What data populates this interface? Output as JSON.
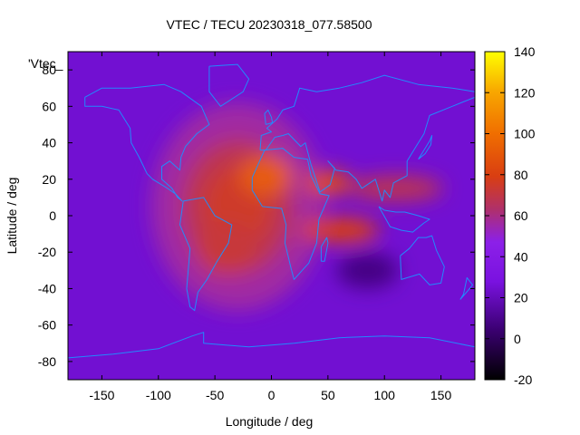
{
  "chart_data": {
    "type": "heatmap",
    "title": "VTEC / TECU 20230318_077.58500",
    "xlabel": "Longitude / deg",
    "ylabel": "Latitude / deg",
    "xlim": [
      -180,
      180
    ],
    "ylim": [
      -90,
      90
    ],
    "x_ticks": [
      -150,
      -100,
      -50,
      0,
      50,
      100,
      150
    ],
    "y_ticks": [
      -80,
      -60,
      -40,
      -20,
      0,
      20,
      40,
      60,
      80
    ],
    "legend_label": "'Vtec_",
    "legend_placement": "top-left",
    "colorbar": {
      "range": [
        -20,
        140
      ],
      "ticks": [
        -20,
        0,
        20,
        40,
        60,
        80,
        100,
        120,
        140
      ],
      "palette": "black-purple-red-orange-yellow"
    },
    "background_value": 25,
    "enhancements": [
      {
        "name": "equatorial anomaly core (South America / Atlantic)",
        "lon": -30,
        "lat": 5,
        "value": 75
      },
      {
        "name": "northern crest (Africa)",
        "lon": -5,
        "lat": 22,
        "value": 92
      },
      {
        "name": "southern crest (Atlantic)",
        "lon": -40,
        "lat": -18,
        "value": 72
      },
      {
        "name": "Arabian Sea / Gulf region",
        "lon": 50,
        "lat": 18,
        "value": 85
      },
      {
        "name": "Indian Ocean band",
        "lon": 60,
        "lat": -8,
        "value": 80
      },
      {
        "name": "Southeast Asia band",
        "lon": 110,
        "lat": 15,
        "value": 68
      }
    ],
    "depletions": [
      {
        "name": "southern Indian Ocean trough",
        "lon": 85,
        "lat": -30,
        "value": 8
      }
    ]
  }
}
